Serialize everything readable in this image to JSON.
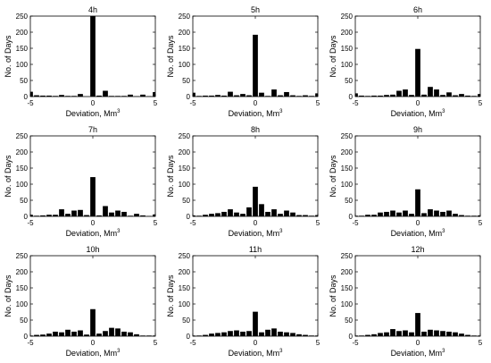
{
  "chart_data": [
    {
      "type": "bar",
      "title": "4h",
      "xlabel": "Deviation, Mm",
      "xlabel_sup": "3",
      "ylabel": "No. of Days",
      "xlim": [
        -5,
        5
      ],
      "ylim": [
        0,
        250
      ],
      "xticks": [
        "-5",
        "0",
        "5"
      ],
      "yticks": [
        "0",
        "50",
        "100",
        "150",
        "200",
        "250"
      ],
      "x": [
        -5,
        -4.5,
        -4,
        -3.5,
        -3,
        -2.5,
        -2,
        -1.5,
        -1,
        -0.5,
        0,
        0.5,
        1,
        1.5,
        2,
        2.5,
        3,
        3.5,
        4,
        4.5,
        5
      ],
      "values": [
        15,
        4,
        3,
        3,
        2,
        5,
        2,
        2,
        8,
        0,
        250,
        3,
        18,
        2,
        2,
        2,
        6,
        1,
        6,
        1,
        14
      ]
    },
    {
      "type": "bar",
      "title": "5h",
      "xlabel": "Deviation, Mm",
      "xlabel_sup": "3",
      "ylabel": "No. of Days",
      "xlim": [
        -5,
        5
      ],
      "ylim": [
        0,
        250
      ],
      "xticks": [
        "-5",
        "0",
        "5"
      ],
      "yticks": [
        "0",
        "50",
        "100",
        "150",
        "200",
        "250"
      ],
      "x": [
        -5,
        -4.5,
        -4,
        -3.5,
        -3,
        -2.5,
        -2,
        -1.5,
        -1,
        -0.5,
        0,
        0.5,
        1,
        1.5,
        2,
        2.5,
        3,
        3.5,
        4,
        4.5,
        5
      ],
      "values": [
        12,
        2,
        3,
        3,
        5,
        3,
        15,
        4,
        8,
        4,
        192,
        12,
        2,
        22,
        4,
        14,
        4,
        2,
        4,
        2,
        10
      ]
    },
    {
      "type": "bar",
      "title": "6h",
      "xlabel": "Deviation, Mm",
      "xlabel_sup": "3",
      "ylabel": "No. of Days",
      "xlim": [
        -5,
        5
      ],
      "ylim": [
        0,
        250
      ],
      "xticks": [
        "-5",
        "0",
        "5"
      ],
      "yticks": [
        "0",
        "50",
        "100",
        "150",
        "200",
        "250"
      ],
      "x": [
        -5,
        -4.5,
        -4,
        -3.5,
        -3,
        -2.5,
        -2,
        -1.5,
        -1,
        -0.5,
        0,
        0.5,
        1,
        1.5,
        2,
        2.5,
        3,
        3.5,
        4,
        4.5,
        5
      ],
      "values": [
        10,
        3,
        2,
        3,
        3,
        5,
        6,
        18,
        22,
        5,
        148,
        6,
        30,
        22,
        5,
        13,
        4,
        8,
        3,
        2,
        8
      ]
    },
    {
      "type": "bar",
      "title": "7h",
      "xlabel": "Deviation, Mm",
      "xlabel_sup": "3",
      "ylabel": "No. of Days",
      "xlim": [
        -5,
        5
      ],
      "ylim": [
        0,
        250
      ],
      "xticks": [
        "-5",
        "0",
        "5"
      ],
      "yticks": [
        "0",
        "50",
        "100",
        "150",
        "200",
        "250"
      ],
      "x": [
        -5,
        -4.5,
        -4,
        -3.5,
        -3,
        -2.5,
        -2,
        -1.5,
        -1,
        -0.5,
        0,
        0.5,
        1,
        1.5,
        2,
        2.5,
        3,
        3.5,
        4,
        4.5,
        5
      ],
      "values": [
        5,
        2,
        3,
        5,
        5,
        22,
        8,
        18,
        20,
        4,
        122,
        3,
        32,
        12,
        18,
        14,
        2,
        8,
        3,
        1,
        6
      ]
    },
    {
      "type": "bar",
      "title": "8h",
      "xlabel": "Deviation, Mm",
      "xlabel_sup": "3",
      "ylabel": "No. of Days",
      "xlim": [
        -5,
        5
      ],
      "ylim": [
        0,
        250
      ],
      "xticks": [
        "-5",
        "0",
        "5"
      ],
      "yticks": [
        "0",
        "50",
        "100",
        "150",
        "200",
        "250"
      ],
      "x": [
        -5,
        -4.5,
        -4,
        -3.5,
        -3,
        -2.5,
        -2,
        -1.5,
        -1,
        -0.5,
        0,
        0.5,
        1,
        1.5,
        2,
        2.5,
        3,
        3.5,
        4,
        4.5,
        5
      ],
      "values": [
        3,
        2,
        5,
        8,
        10,
        14,
        22,
        12,
        8,
        28,
        92,
        38,
        14,
        22,
        8,
        18,
        12,
        4,
        4,
        2,
        4
      ]
    },
    {
      "type": "bar",
      "title": "9h",
      "xlabel": "Deviation, Mm",
      "xlabel_sup": "3",
      "ylabel": "No. of Days",
      "xlim": [
        -5,
        5
      ],
      "ylim": [
        0,
        250
      ],
      "xticks": [
        "-5",
        "0",
        "5"
      ],
      "yticks": [
        "0",
        "50",
        "100",
        "150",
        "200",
        "250"
      ],
      "x": [
        -5,
        -4.5,
        -4,
        -3.5,
        -3,
        -2.5,
        -2,
        -1.5,
        -1,
        -0.5,
        0,
        0.5,
        1,
        1.5,
        2,
        2.5,
        3,
        3.5,
        4,
        4.5,
        5
      ],
      "values": [
        2,
        2,
        5,
        5,
        12,
        14,
        18,
        12,
        18,
        8,
        84,
        10,
        22,
        18,
        14,
        18,
        8,
        4,
        2,
        2,
        3
      ]
    },
    {
      "type": "bar",
      "title": "10h",
      "xlabel": "Deviation, Mm",
      "xlabel_sup": "3",
      "ylabel": "No. of Days",
      "xlim": [
        -5,
        5
      ],
      "ylim": [
        0,
        250
      ],
      "xticks": [
        "-5",
        "0",
        "5"
      ],
      "yticks": [
        "0",
        "50",
        "100",
        "150",
        "200",
        "250"
      ],
      "x": [
        -5,
        -4.5,
        -4,
        -3.5,
        -3,
        -2.5,
        -2,
        -1.5,
        -1,
        -0.5,
        0,
        0.5,
        1,
        1.5,
        2,
        2.5,
        3,
        3.5,
        4,
        4.5,
        5
      ],
      "values": [
        2,
        4,
        5,
        8,
        14,
        12,
        20,
        14,
        18,
        5,
        84,
        8,
        16,
        26,
        24,
        14,
        12,
        6,
        2,
        2,
        2
      ]
    },
    {
      "type": "bar",
      "title": "11h",
      "xlabel": "Deviation, Mm",
      "xlabel_sup": "3",
      "ylabel": "No. of Days",
      "xlim": [
        -5,
        5
      ],
      "ylim": [
        0,
        250
      ],
      "xticks": [
        "-5",
        "0",
        "5"
      ],
      "yticks": [
        "0",
        "50",
        "100",
        "150",
        "200",
        "250"
      ],
      "x": [
        -5,
        -4.5,
        -4,
        -3.5,
        -3,
        -2.5,
        -2,
        -1.5,
        -1,
        -0.5,
        0,
        0.5,
        1,
        1.5,
        2,
        2.5,
        3,
        3.5,
        4,
        4.5,
        5
      ],
      "values": [
        2,
        2,
        4,
        8,
        10,
        12,
        16,
        18,
        14,
        16,
        76,
        12,
        20,
        24,
        14,
        12,
        10,
        6,
        4,
        2,
        2
      ]
    },
    {
      "type": "bar",
      "title": "12h",
      "xlabel": "Deviation, Mm",
      "xlabel_sup": "3",
      "ylabel": "No. of Days",
      "xlim": [
        -5,
        5
      ],
      "ylim": [
        0,
        250
      ],
      "xticks": [
        "-5",
        "0",
        "5"
      ],
      "yticks": [
        "0",
        "50",
        "100",
        "150",
        "200",
        "250"
      ],
      "x": [
        -5,
        -4.5,
        -4,
        -3.5,
        -3,
        -2.5,
        -2,
        -1.5,
        -1,
        -0.5,
        0,
        0.5,
        1,
        1.5,
        2,
        2.5,
        3,
        3.5,
        4,
        4.5,
        5
      ],
      "values": [
        2,
        2,
        4,
        6,
        10,
        12,
        22,
        16,
        18,
        12,
        72,
        14,
        20,
        18,
        16,
        14,
        12,
        8,
        4,
        2,
        2
      ]
    }
  ]
}
